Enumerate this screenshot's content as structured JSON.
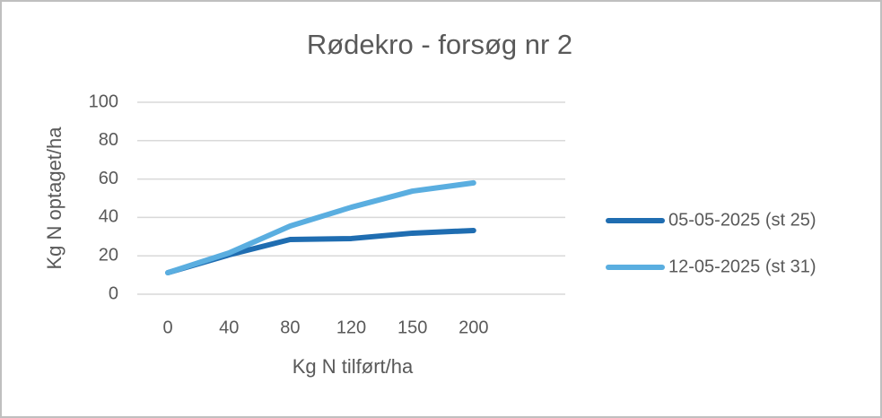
{
  "chart_data": {
    "type": "line",
    "title": "Rødekro - forsøg nr 2",
    "x_label": "Kg N tilført/ha",
    "y_label": "Kg N optaget/ha",
    "categories": [
      "0",
      "40",
      "80",
      "120",
      "150",
      "200",
      null
    ],
    "series": [
      {
        "name": "05-05-2025 (st 25)",
        "color": "#1f6db1",
        "values": [
          11.2,
          20.5,
          28.5,
          29,
          31.8,
          33.2,
          null
        ]
      },
      {
        "name": "12-05-2025 (st 31)",
        "color": "#5aaee0",
        "values": [
          11.2,
          21.5,
          35.5,
          45.3,
          53.7,
          58,
          null
        ]
      }
    ],
    "ylim": [
      0,
      100
    ],
    "yticks": [
      0,
      20,
      40,
      60,
      80,
      100
    ],
    "grid": true,
    "legend": "right"
  }
}
